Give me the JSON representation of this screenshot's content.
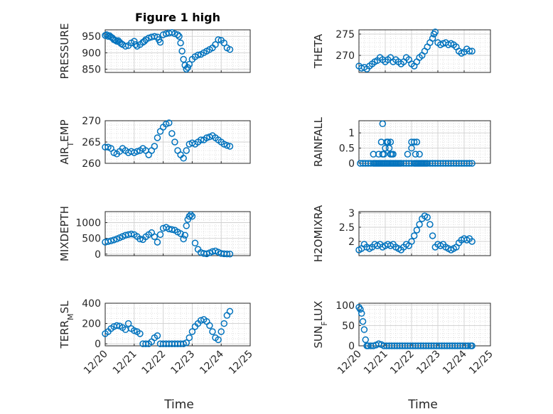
{
  "figure": {
    "title": "Figure 1 high",
    "accent": "#0072BD"
  },
  "chart_data": [
    {
      "type": "scatter",
      "ylabel": "PRESSURE",
      "ylim": [
        840,
        970
      ],
      "yticks": [
        850,
        900,
        950
      ],
      "xlim": [
        0,
        5
      ],
      "series": [
        {
          "marker": "circle",
          "x": [
            0,
            0.05,
            0.1,
            0.15,
            0.2,
            0.25,
            0.3,
            0.35,
            0.4,
            0.45,
            0.5,
            0.55,
            0.6,
            0.7,
            0.8,
            0.9,
            1.0,
            1.05,
            1.1,
            1.2,
            1.3,
            1.35,
            1.4,
            1.5,
            1.6,
            1.7,
            1.8,
            1.85,
            1.9,
            2.0,
            2.1,
            2.2,
            2.3,
            2.4,
            2.5,
            2.55,
            2.6,
            2.65,
            2.7,
            2.75,
            2.8,
            2.85,
            2.9,
            3.0,
            3.1,
            3.2,
            3.3,
            3.4,
            3.5,
            3.6,
            3.7,
            3.8,
            3.9,
            4.0,
            4.1,
            4.2,
            4.3
          ],
          "y": [
            953,
            955,
            950,
            952,
            948,
            945,
            940,
            938,
            935,
            937,
            932,
            928,
            925,
            920,
            922,
            930,
            935,
            925,
            920,
            925,
            932,
            935,
            940,
            945,
            948,
            950,
            948,
            940,
            932,
            955,
            958,
            960,
            962,
            958,
            955,
            950,
            930,
            905,
            880,
            862,
            850,
            855,
            865,
            880,
            888,
            893,
            895,
            900,
            905,
            910,
            915,
            925,
            940,
            938,
            930,
            915,
            910
          ]
        }
      ]
    },
    {
      "type": "scatter",
      "ylabel": "THETA",
      "ylim": [
        266,
        276
      ],
      "yticks": [
        270,
        275
      ],
      "xlim": [
        0,
        5
      ],
      "series": [
        {
          "marker": "circle",
          "x": [
            0,
            0.1,
            0.2,
            0.3,
            0.4,
            0.5,
            0.6,
            0.7,
            0.8,
            0.9,
            1.0,
            1.1,
            1.2,
            1.3,
            1.4,
            1.5,
            1.6,
            1.7,
            1.8,
            1.9,
            2.0,
            2.1,
            2.2,
            2.3,
            2.4,
            2.5,
            2.6,
            2.7,
            2.8,
            2.85,
            2.9,
            3.0,
            3.1,
            3.2,
            3.3,
            3.4,
            3.5,
            3.6,
            3.7,
            3.8,
            3.9,
            4.0,
            4.1,
            4.2,
            4.3
          ],
          "y": [
            267.5,
            267,
            267.2,
            266.8,
            267.5,
            268,
            268.5,
            268.8,
            269.5,
            269,
            268.5,
            269,
            269.5,
            268.5,
            269,
            268.5,
            268,
            268.5,
            269.5,
            269,
            268,
            267.5,
            268.5,
            269.5,
            270,
            271,
            272,
            273,
            274,
            275,
            275.5,
            273,
            272.5,
            272.8,
            273,
            272.5,
            272.8,
            272.5,
            272,
            271,
            270.5,
            270.8,
            271.5,
            271,
            271
          ]
        }
      ]
    },
    {
      "type": "scatter",
      "ylabel": "AIR_TEMP",
      "ylim": [
        260,
        270
      ],
      "yticks": [
        260,
        265,
        270
      ],
      "xlim": [
        0,
        5
      ],
      "series": [
        {
          "marker": "circle",
          "x": [
            0,
            0.1,
            0.2,
            0.3,
            0.4,
            0.5,
            0.6,
            0.7,
            0.8,
            0.9,
            1.0,
            1.1,
            1.2,
            1.3,
            1.4,
            1.5,
            1.6,
            1.7,
            1.8,
            1.9,
            2.0,
            2.1,
            2.2,
            2.3,
            2.4,
            2.5,
            2.6,
            2.7,
            2.8,
            2.9,
            3.0,
            3.1,
            3.2,
            3.3,
            3.4,
            3.5,
            3.6,
            3.7,
            3.8,
            3.9,
            4.0,
            4.1,
            4.2,
            4.3
          ],
          "y": [
            263.8,
            263.8,
            263.5,
            262.5,
            262.2,
            262.8,
            263.5,
            263,
            262.5,
            262.8,
            262.5,
            262.8,
            263,
            263.5,
            263,
            262,
            263,
            264,
            266,
            267.5,
            268.5,
            269.2,
            269.5,
            267,
            265,
            263,
            262,
            261.2,
            263,
            264.5,
            264.8,
            264.5,
            265,
            265.5,
            265.5,
            266,
            266.2,
            266.5,
            266,
            265.5,
            265,
            264.5,
            264.2,
            264
          ]
        }
      ]
    },
    {
      "type": "scatter",
      "ylabel": "RAINFALL",
      "ylim": [
        0,
        1.4
      ],
      "yticks": [
        0,
        0.5,
        1
      ],
      "xlim": [
        0,
        5
      ],
      "series": [
        {
          "marker": "circle",
          "x": [
            0.05,
            0.15,
            0.25,
            0.35,
            0.45,
            0.55,
            0.6,
            0.65,
            0.7,
            0.75,
            0.8,
            0.85,
            0.9,
            0.95,
            1.0,
            1.05,
            1.1,
            1.15,
            1.2,
            1.25,
            1.3,
            1.35,
            1.4,
            1.45,
            1.5,
            1.55,
            1.6,
            1.7,
            1.8,
            1.9,
            2.0,
            2.1,
            2.15,
            2.2,
            2.25,
            2.3,
            2.35,
            2.4,
            2.45,
            2.5,
            2.55,
            2.6,
            2.7,
            2.8,
            2.9,
            3.0,
            3.1,
            3.2,
            3.3,
            3.4,
            3.5,
            3.6,
            3.7,
            3.8,
            3.9,
            4.0,
            4.1,
            4.2,
            4.3,
            0.55,
            0.75,
            0.85,
            0.9,
            1.0,
            1.1,
            1.2,
            1.25,
            0.9,
            1.05,
            1.1,
            1.15,
            0.95,
            1.2,
            1.3,
            1.85,
            2.0,
            2.1,
            2.15,
            2.3,
            2.0,
            2.2
          ],
          "y": [
            0,
            0,
            0,
            0,
            0,
            0,
            0,
            0,
            0,
            0,
            0,
            0,
            0,
            0,
            0,
            0,
            0,
            0,
            0,
            0,
            0,
            0,
            0,
            0,
            0,
            0,
            0,
            0,
            0,
            0,
            0,
            0,
            0,
            0,
            0,
            0,
            0,
            0,
            0,
            0,
            0,
            0,
            0,
            0,
            0,
            0,
            0,
            0,
            0,
            0,
            0,
            0,
            0,
            0,
            0,
            0,
            0,
            0,
            0,
            0.3,
            0.3,
            0.7,
            0.3,
            0.5,
            0.7,
            0.3,
            0.3,
            1.3,
            0.7,
            0.7,
            0.5,
            0.3,
            0.7,
            0.3,
            0.3,
            0.7,
            0.7,
            0.3,
            0.3,
            0.5,
            0.7
          ]
        }
      ]
    },
    {
      "type": "scatter",
      "ylabel": "MIXDEPTH",
      "ylim": [
        -50,
        1350
      ],
      "yticks": [
        0,
        500,
        1000
      ],
      "xlim": [
        0,
        5
      ],
      "series": [
        {
          "marker": "circle",
          "x": [
            0,
            0.1,
            0.2,
            0.3,
            0.4,
            0.5,
            0.6,
            0.7,
            0.8,
            0.9,
            1.0,
            1.1,
            1.2,
            1.3,
            1.4,
            1.5,
            1.6,
            1.7,
            1.8,
            1.9,
            2.0,
            2.1,
            2.2,
            2.3,
            2.4,
            2.5,
            2.6,
            2.7,
            2.75,
            2.8,
            2.85,
            2.9,
            2.95,
            3.0,
            3.1,
            3.2,
            3.3,
            3.4,
            3.5,
            3.6,
            3.7,
            3.8,
            3.9,
            4.0,
            4.1,
            4.2,
            4.3
          ],
          "y": [
            380,
            400,
            420,
            450,
            480,
            520,
            560,
            600,
            620,
            640,
            620,
            560,
            480,
            460,
            550,
            620,
            680,
            550,
            380,
            620,
            820,
            850,
            800,
            780,
            760,
            700,
            650,
            480,
            600,
            900,
            1100,
            1200,
            1250,
            1200,
            350,
            150,
            50,
            20,
            10,
            40,
            80,
            100,
            60,
            20,
            10,
            5,
            0
          ]
        }
      ]
    },
    {
      "type": "scatter",
      "ylabel": "H2OMIXRA",
      "ylim": [
        1.5,
        3.05
      ],
      "yticks": [
        2,
        2.5,
        3
      ],
      "xlim": [
        0,
        5
      ],
      "series": [
        {
          "marker": "circle",
          "x": [
            0,
            0.1,
            0.2,
            0.3,
            0.4,
            0.5,
            0.6,
            0.7,
            0.8,
            0.9,
            1.0,
            1.1,
            1.2,
            1.3,
            1.4,
            1.5,
            1.6,
            1.7,
            1.8,
            1.9,
            2.0,
            2.1,
            2.2,
            2.3,
            2.4,
            2.5,
            2.6,
            2.7,
            2.8,
            2.9,
            3.0,
            3.1,
            3.2,
            3.3,
            3.4,
            3.5,
            3.6,
            3.7,
            3.8,
            3.9,
            4.0,
            4.1,
            4.2,
            4.3
          ],
          "y": [
            1.7,
            1.75,
            1.9,
            1.8,
            1.75,
            1.8,
            1.9,
            1.85,
            1.9,
            1.8,
            1.85,
            1.9,
            1.85,
            1.9,
            1.8,
            1.75,
            1.7,
            1.8,
            1.9,
            1.85,
            2.0,
            2.2,
            2.4,
            2.6,
            2.8,
            2.9,
            2.85,
            2.6,
            2.2,
            1.8,
            1.9,
            1.85,
            1.9,
            1.8,
            1.75,
            1.7,
            1.75,
            1.8,
            1.95,
            2.05,
            2.1,
            2.05,
            2.1,
            2.0
          ]
        }
      ]
    },
    {
      "type": "scatter",
      "ylabel": "TERR_MSL",
      "ylim": [
        -20,
        400
      ],
      "yticks": [
        0,
        200,
        400
      ],
      "xlim": [
        0,
        5
      ],
      "series": [
        {
          "marker": "circle",
          "x": [
            0,
            0.1,
            0.2,
            0.3,
            0.4,
            0.5,
            0.6,
            0.7,
            0.8,
            0.9,
            1.0,
            1.1,
            1.2,
            1.3,
            1.4,
            1.5,
            1.6,
            1.7,
            1.8,
            1.9,
            2.0,
            2.1,
            2.2,
            2.3,
            2.4,
            2.5,
            2.6,
            2.7,
            2.8,
            2.9,
            3.0,
            3.1,
            3.2,
            3.3,
            3.4,
            3.5,
            3.6,
            3.7,
            3.8,
            3.9,
            4.0,
            4.1,
            4.2,
            4.3
          ],
          "y": [
            100,
            120,
            150,
            170,
            180,
            175,
            160,
            140,
            200,
            150,
            130,
            120,
            100,
            0,
            0,
            0,
            20,
            60,
            80,
            0,
            0,
            0,
            0,
            0,
            0,
            0,
            0,
            0,
            10,
            60,
            120,
            170,
            200,
            230,
            240,
            220,
            180,
            120,
            60,
            40,
            120,
            200,
            280,
            320
          ]
        }
      ]
    },
    {
      "type": "scatter",
      "ylabel": "SUN_FLUX",
      "ylim": [
        0,
        105
      ],
      "yticks": [
        0,
        50,
        100
      ],
      "xlim": [
        0,
        5
      ],
      "series": [
        {
          "marker": "circle",
          "x": [
            0,
            0.05,
            0.1,
            0.15,
            0.2,
            0.25,
            0.3,
            0.35,
            0.45,
            0.55,
            0.65,
            0.75,
            0.85,
            0.95,
            1.05,
            1.15,
            1.25,
            1.35,
            1.45,
            1.55,
            1.65,
            1.75,
            1.85,
            1.95,
            2.05,
            2.15,
            2.25,
            2.35,
            2.45,
            2.55,
            2.65,
            2.75,
            2.85,
            2.95,
            3.05,
            3.15,
            3.25,
            3.35,
            3.45,
            3.55,
            3.65,
            3.75,
            3.85,
            3.95,
            4.05,
            4.15,
            4.25,
            4.3
          ],
          "y": [
            95,
            90,
            80,
            60,
            40,
            15,
            0,
            0,
            0,
            0,
            2,
            5,
            3,
            0,
            0,
            0,
            0,
            0,
            0,
            0,
            0,
            0,
            0,
            0,
            0,
            0,
            0,
            0,
            0,
            0,
            0,
            0,
            0,
            0,
            0,
            0,
            0,
            0,
            0,
            0,
            0,
            0,
            0,
            0,
            0,
            0,
            0,
            0
          ]
        }
      ]
    }
  ],
  "x_axis": {
    "label": "Time",
    "tick_values": [
      0,
      1,
      2,
      3,
      4,
      5
    ],
    "tick_labels": [
      "12/20",
      "12/21",
      "12/22",
      "12/23",
      "12/24",
      "12/25"
    ]
  }
}
